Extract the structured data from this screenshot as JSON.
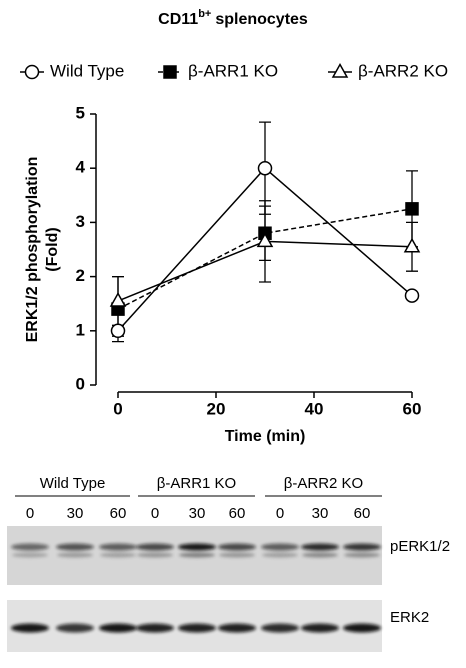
{
  "chart_data": {
    "type": "line",
    "title": "CD11",
    "title_superscript": "b+",
    "title_suffix": "splenocytes",
    "x": [
      0,
      30,
      60
    ],
    "series": [
      {
        "name": "Wild Type",
        "color": "#000000",
        "marker": "circle-open",
        "linestyle": "solid",
        "values": [
          1.0,
          4.0,
          1.65
        ],
        "errors": [
          0.1,
          0.85,
          0.05
        ]
      },
      {
        "name": "β-ARR1 KO",
        "color": "#000000",
        "marker": "square-filled",
        "linestyle": "dashed",
        "values": [
          1.4,
          2.8,
          3.25
        ],
        "errors": [
          0.6,
          0.5,
          0.7
        ]
      },
      {
        "name": "β-ARR2 KO",
        "color": "#000000",
        "marker": "triangle-open",
        "linestyle": "solid",
        "values": [
          1.55,
          2.65,
          2.55
        ],
        "errors": [
          0.45,
          0.75,
          0.45
        ]
      }
    ],
    "xlabel": "Time (min)",
    "ylabel": [
      "ERK1/2 phosphorylation",
      "(Fold)"
    ],
    "xlim": [
      0,
      60
    ],
    "xticks": [
      0,
      20,
      40,
      60
    ],
    "ylim": [
      0,
      5
    ],
    "yticks": [
      0,
      1,
      2,
      3,
      4,
      5
    ],
    "grid": false
  },
  "blot": {
    "groups": [
      {
        "label": "Wild Type",
        "lanes": [
          "0",
          "30",
          "60"
        ]
      },
      {
        "label": "β-ARR1 KO",
        "lanes": [
          "0",
          "30",
          "60"
        ]
      },
      {
        "label": "β-ARR2 KO",
        "lanes": [
          "0",
          "30",
          "60"
        ]
      }
    ],
    "rows": [
      "pERK1/2",
      "ERK2"
    ]
  }
}
